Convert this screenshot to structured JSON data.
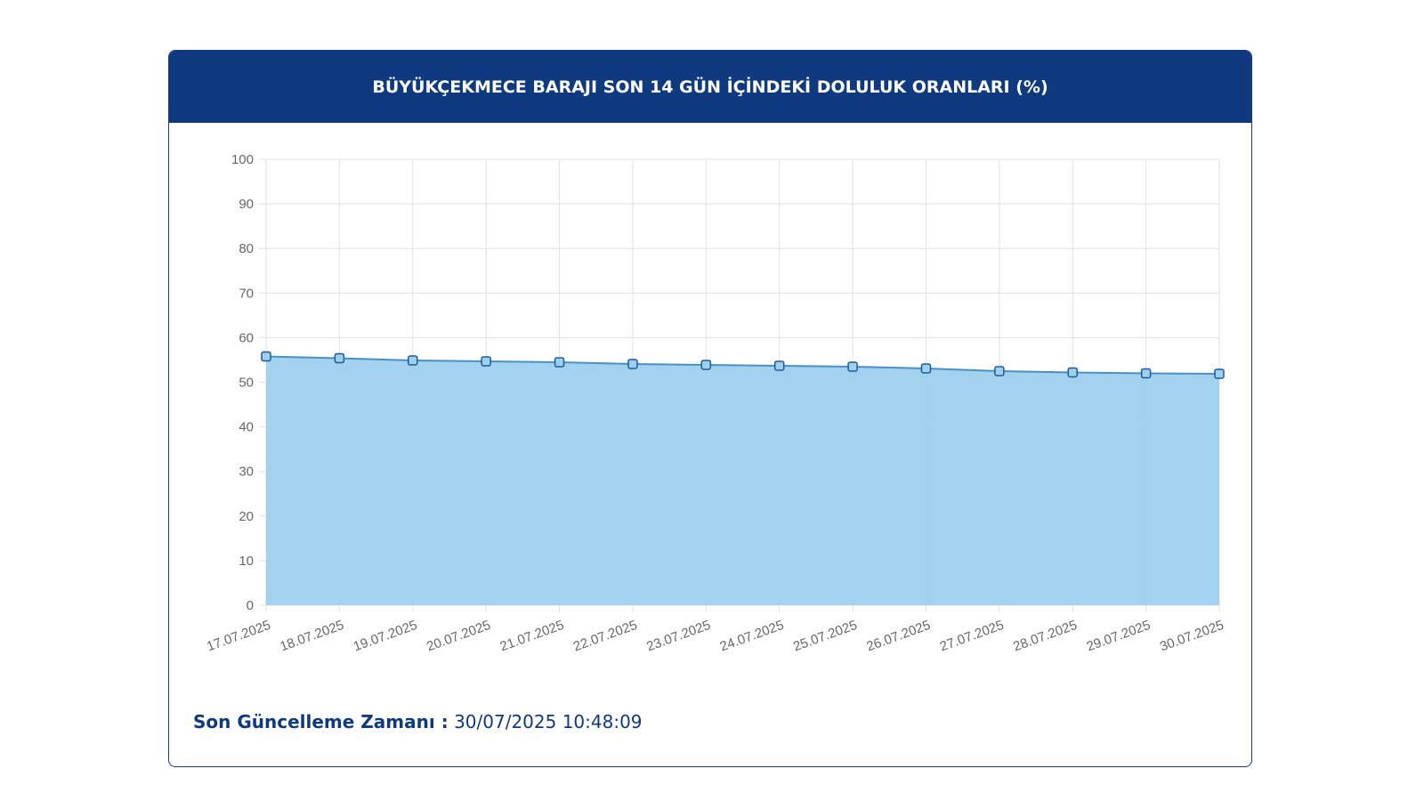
{
  "chart_data": {
    "type": "area",
    "title": "BÜYÜKÇEKMECE BARAJI SON 14 GÜN İÇİNDEKİ DOLULUK ORANLARI (%)",
    "categories": [
      "17.07.2025",
      "18.07.2025",
      "19.07.2025",
      "20.07.2025",
      "21.07.2025",
      "22.07.2025",
      "23.07.2025",
      "24.07.2025",
      "25.07.2025",
      "26.07.2025",
      "27.07.2025",
      "28.07.2025",
      "29.07.2025",
      "30.07.2025"
    ],
    "values": [
      55.8,
      55.4,
      54.9,
      54.7,
      54.5,
      54.1,
      53.9,
      53.7,
      53.5,
      53.1,
      52.5,
      52.2,
      52.0,
      51.9
    ],
    "color": "#4a90c8",
    "fill_color": "#9dd0ec",
    "ylim": [
      0,
      100
    ],
    "yticks": [
      0,
      10,
      20,
      30,
      40,
      50,
      60,
      70,
      80,
      90,
      100
    ],
    "grid": true
  },
  "footer": {
    "label": "Son Güncelleme Zamanı :",
    "value": "30/07/2025 10:48:09"
  }
}
